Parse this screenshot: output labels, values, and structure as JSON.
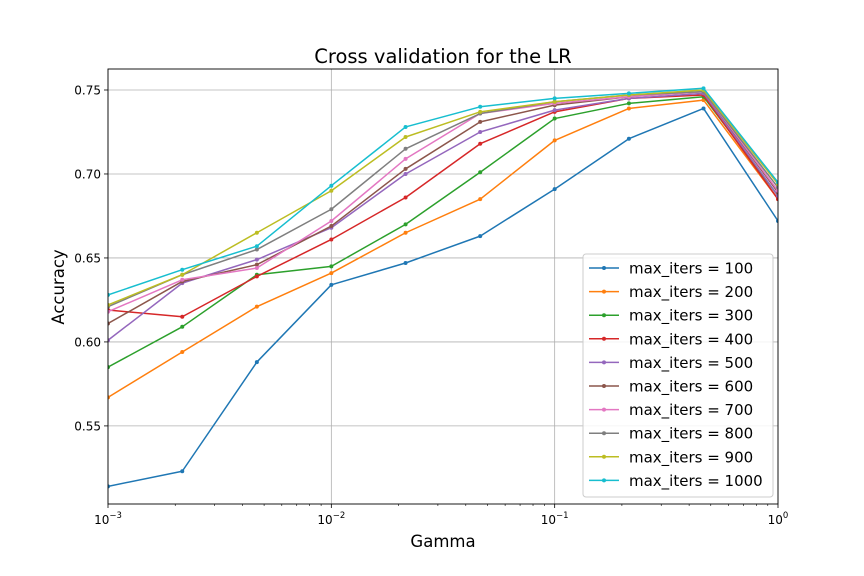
{
  "chart_data": {
    "type": "line",
    "title": "Cross validation for the LR",
    "xlabel": "Gamma",
    "ylabel": "Accuracy",
    "xscale": "log",
    "xlim": [
      0.001,
      1
    ],
    "ylim": [
      0.5035,
      0.7625
    ],
    "grid": true,
    "legend_position": "lower right",
    "x_tick_labels": [
      {
        "value": 0.001,
        "base": "10",
        "exp": "−3"
      },
      {
        "value": 0.01,
        "base": "10",
        "exp": "−2"
      },
      {
        "value": 0.1,
        "base": "10",
        "exp": "−1"
      },
      {
        "value": 1,
        "base": "10",
        "exp": "0"
      }
    ],
    "y_ticks": [
      0.55,
      0.6,
      0.65,
      0.7,
      0.75
    ],
    "y_tick_labels": [
      "0.55",
      "0.60",
      "0.65",
      "0.70",
      "0.75"
    ],
    "x": [
      0.001,
      0.00215,
      0.00464,
      0.01,
      0.0215,
      0.0464,
      0.1,
      0.215,
      0.464,
      1
    ],
    "series": [
      {
        "name": "max_iters = 100",
        "color": "#1f77b4",
        "values": [
          0.514,
          0.523,
          0.588,
          0.634,
          0.647,
          0.663,
          0.691,
          0.721,
          0.739,
          0.672
        ]
      },
      {
        "name": "max_iters = 200",
        "color": "#ff7f0e",
        "values": [
          0.567,
          0.594,
          0.621,
          0.641,
          0.665,
          0.685,
          0.72,
          0.739,
          0.744,
          0.685
        ]
      },
      {
        "name": "max_iters = 300",
        "color": "#2ca02c",
        "values": [
          0.585,
          0.609,
          0.64,
          0.645,
          0.67,
          0.701,
          0.733,
          0.742,
          0.746,
          0.687
        ]
      },
      {
        "name": "max_iters = 400",
        "color": "#d62728",
        "values": [
          0.619,
          0.615,
          0.639,
          0.661,
          0.686,
          0.718,
          0.737,
          0.745,
          0.747,
          0.685
        ]
      },
      {
        "name": "max_iters = 500",
        "color": "#9467bd",
        "values": [
          0.601,
          0.635,
          0.649,
          0.668,
          0.7,
          0.725,
          0.738,
          0.745,
          0.748,
          0.687
        ]
      },
      {
        "name": "max_iters = 600",
        "color": "#8c564b",
        "values": [
          0.611,
          0.636,
          0.646,
          0.669,
          0.703,
          0.731,
          0.741,
          0.746,
          0.749,
          0.689
        ]
      },
      {
        "name": "max_iters = 700",
        "color": "#e377c2",
        "values": [
          0.618,
          0.637,
          0.644,
          0.672,
          0.709,
          0.736,
          0.742,
          0.746,
          0.749,
          0.69
        ]
      },
      {
        "name": "max_iters = 800",
        "color": "#7f7f7f",
        "values": [
          0.621,
          0.64,
          0.655,
          0.679,
          0.715,
          0.736,
          0.743,
          0.747,
          0.749,
          0.692
        ]
      },
      {
        "name": "max_iters = 900",
        "color": "#bcbd22",
        "values": [
          0.622,
          0.64,
          0.665,
          0.69,
          0.722,
          0.737,
          0.743,
          0.747,
          0.75,
          0.694
        ]
      },
      {
        "name": "max_iters = 1000",
        "color": "#17becf",
        "values": [
          0.628,
          0.643,
          0.657,
          0.693,
          0.728,
          0.74,
          0.745,
          0.748,
          0.751,
          0.695
        ]
      }
    ]
  }
}
